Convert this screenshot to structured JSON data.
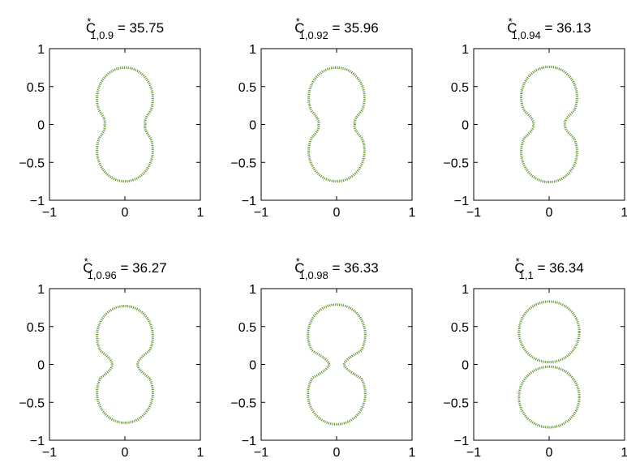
{
  "chart_data": [
    {
      "type": "line",
      "title": {
        "base": "C",
        "sup": "*",
        "sub": "1,0.9",
        "value": " = 35.75"
      },
      "xlim": [
        -1,
        1
      ],
      "ylim": [
        -1,
        1
      ],
      "xticks": [
        -1,
        0,
        1
      ],
      "yticks": [
        -1,
        -0.5,
        0,
        0.5,
        1
      ],
      "xtick_labels": [
        "−1",
        "0",
        "1"
      ],
      "ytick_labels": [
        "−1",
        "−0.5",
        "0",
        "0.5",
        "1"
      ],
      "grid": false,
      "series": [
        {
          "color": "#6a9a3c",
          "shape": {
            "kind": "peanut",
            "top": 0.75,
            "bottom": -0.75,
            "neck_y": 0.0,
            "neck_x": 0.27,
            "lobe_cy": 0.34,
            "lobe_r": 0.4,
            "lobe_rx": 0.37
          }
        }
      ]
    },
    {
      "type": "line",
      "title": {
        "base": "C",
        "sup": "*",
        "sub": "1,0.92",
        "value": " = 35.96"
      },
      "xlim": [
        -1,
        1
      ],
      "ylim": [
        -1,
        1
      ],
      "xticks": [
        -1,
        0,
        1
      ],
      "yticks": [
        -1,
        -0.5,
        0,
        0.5,
        1
      ],
      "xtick_labels": [
        "−1",
        "0",
        "1"
      ],
      "ytick_labels": [
        "−1",
        "−0.5",
        "0",
        "0.5",
        "1"
      ],
      "grid": false,
      "series": [
        {
          "color": "#6a9a3c",
          "shape": {
            "kind": "peanut",
            "top": 0.75,
            "bottom": -0.75,
            "neck_y": 0.0,
            "neck_x": 0.24,
            "lobe_cy": 0.35,
            "lobe_r": 0.4,
            "lobe_rx": 0.37
          }
        }
      ]
    },
    {
      "type": "line",
      "title": {
        "base": "C",
        "sup": "*",
        "sub": "1,0.94",
        "value": " = 36.13"
      },
      "xlim": [
        -1,
        1
      ],
      "ylim": [
        -1,
        1
      ],
      "xticks": [
        -1,
        0,
        1
      ],
      "yticks": [
        -1,
        -0.5,
        0,
        0.5,
        1
      ],
      "xtick_labels": [
        "−1",
        "0",
        "1"
      ],
      "ytick_labels": [
        "−1",
        "−0.5",
        "0",
        "0.5",
        "1"
      ],
      "grid": false,
      "series": [
        {
          "color": "#6a9a3c",
          "shape": {
            "kind": "peanut",
            "top": 0.76,
            "bottom": -0.76,
            "neck_y": 0.0,
            "neck_x": 0.21,
            "lobe_cy": 0.36,
            "lobe_r": 0.4,
            "lobe_rx": 0.37
          }
        }
      ]
    },
    {
      "type": "line",
      "title": {
        "base": "C",
        "sup": "*",
        "sub": "1,0.96",
        "value": " = 36.27"
      },
      "xlim": [
        -1,
        1
      ],
      "ylim": [
        -1,
        1
      ],
      "xticks": [
        -1,
        0,
        1
      ],
      "yticks": [
        -1,
        -0.5,
        0,
        0.5,
        1
      ],
      "xtick_labels": [
        "−1",
        "0",
        "1"
      ],
      "ytick_labels": [
        "−1",
        "−0.5",
        "0",
        "0.5",
        "1"
      ],
      "grid": false,
      "series": [
        {
          "color": "#6a9a3c",
          "shape": {
            "kind": "peanut",
            "top": 0.77,
            "bottom": -0.77,
            "neck_y": 0.0,
            "neck_x": 0.17,
            "lobe_cy": 0.37,
            "lobe_r": 0.4,
            "lobe_rx": 0.37
          }
        }
      ]
    },
    {
      "type": "line",
      "title": {
        "base": "C",
        "sup": "*",
        "sub": "1,0.98",
        "value": " = 36.33"
      },
      "xlim": [
        -1,
        1
      ],
      "ylim": [
        -1,
        1
      ],
      "xticks": [
        -1,
        0,
        1
      ],
      "yticks": [
        -1,
        -0.5,
        0,
        0.5,
        1
      ],
      "xtick_labels": [
        "−1",
        "0",
        "1"
      ],
      "ytick_labels": [
        "−1",
        "−0.5",
        "0",
        "0.5",
        "1"
      ],
      "grid": false,
      "series": [
        {
          "color": "#6a9a3c",
          "shape": {
            "kind": "peanut",
            "top": 0.79,
            "bottom": -0.79,
            "neck_y": 0.0,
            "neck_x": 0.1,
            "lobe_cy": 0.39,
            "lobe_r": 0.4,
            "lobe_rx": 0.38
          }
        }
      ]
    },
    {
      "type": "line",
      "title": {
        "base": "C",
        "sup": "*",
        "sub": "1,1",
        "value": " = 36.34"
      },
      "xlim": [
        -1,
        1
      ],
      "ylim": [
        -1,
        1
      ],
      "xticks": [
        -1,
        0,
        1
      ],
      "yticks": [
        -1,
        -0.5,
        0,
        0.5,
        1
      ],
      "xtick_labels": [
        "−1",
        "0",
        "1"
      ],
      "ytick_labels": [
        "−1",
        "−0.5",
        "0",
        "0.5",
        "1"
      ],
      "grid": false,
      "series": [
        {
          "color": "#6a9a3c",
          "shape": {
            "kind": "circle",
            "cx": 0.0,
            "cy": 0.43,
            "r": 0.4
          }
        },
        {
          "color": "#6a9a3c",
          "shape": {
            "kind": "circle",
            "cx": 0.0,
            "cy": -0.43,
            "r": 0.4
          }
        }
      ]
    }
  ]
}
